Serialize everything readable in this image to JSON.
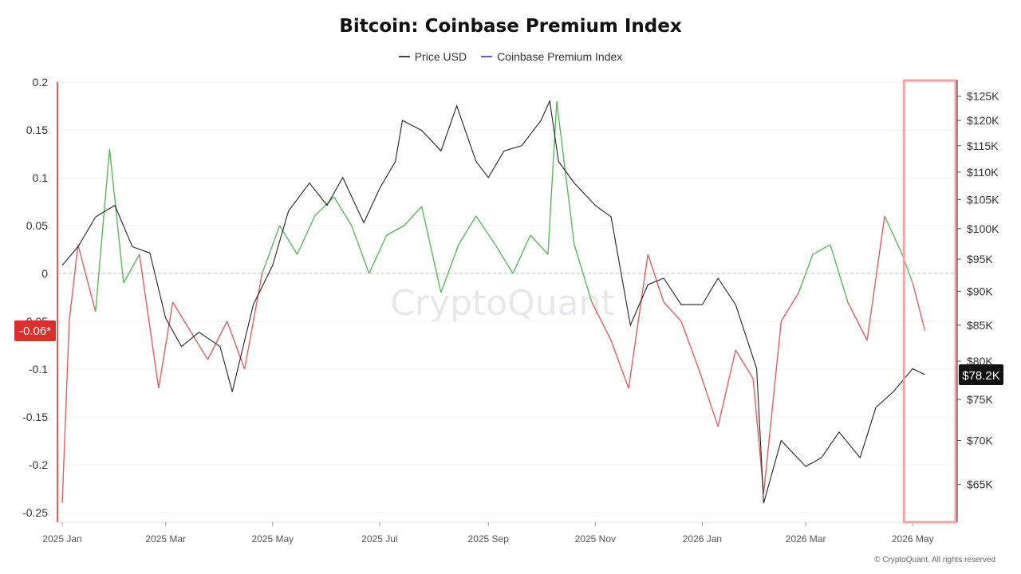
{
  "title": "Bitcoin: Coinbase Premium Index",
  "legend": [
    {
      "label": "Price USD",
      "color": "#444444"
    },
    {
      "label": "Coinbase Premium Index",
      "color": "#6a5acd"
    }
  ],
  "watermark": "CryptoQuant",
  "copyright": "© CryptoQuant. All rights reserved",
  "left_badge": "-0.06*",
  "right_badge": "$78.2K",
  "colors": {
    "positive": "#5cb85c",
    "negative": "#e06060",
    "price": "#222222",
    "highlight": "#f3a3a3",
    "badge_left": "#d9302c",
    "badge_right": "#111111"
  },
  "chart_data": {
    "type": "line",
    "title": "Bitcoin: Coinbase Premium Index",
    "x_tick_labels": [
      "2025 Jan",
      "2025 Mar",
      "2025 May",
      "2025 Jul",
      "2025 Sep",
      "2025 Nov",
      "2026 Jan",
      "2026 Mar",
      "2026 May"
    ],
    "left_axis": {
      "ticks": [
        "0.2",
        "0.15",
        "0.1",
        "0.05",
        "0",
        "-0.05",
        "-0.1",
        "-0.15",
        "-0.2",
        "-0.25"
      ],
      "range": [
        -0.26,
        0.2
      ]
    },
    "right_axis": {
      "scale": "log",
      "ticks": [
        "$125K",
        "$120K",
        "$115K",
        "$110K",
        "$105K",
        "$100K",
        "$95K",
        "$90K",
        "$85K",
        "$80K",
        "$75K",
        "$70K",
        "$65K"
      ],
      "range": [
        61000,
        128000
      ]
    },
    "series": [
      {
        "name": "Price USD",
        "axis": "right",
        "x": [
          "2025-01-01",
          "2025-01-10",
          "2025-01-20",
          "2025-01-31",
          "2025-02-10",
          "2025-02-20",
          "2025-03-01",
          "2025-03-10",
          "2025-03-20",
          "2025-04-01",
          "2025-04-08",
          "2025-04-20",
          "2025-05-01",
          "2025-05-10",
          "2025-05-22",
          "2025-06-01",
          "2025-06-10",
          "2025-06-22",
          "2025-07-01",
          "2025-07-10",
          "2025-07-14",
          "2025-07-25",
          "2025-08-05",
          "2025-08-14",
          "2025-08-25",
          "2025-09-01",
          "2025-09-10",
          "2025-09-20",
          "2025-10-01",
          "2025-10-06",
          "2025-10-11",
          "2025-10-20",
          "2025-11-01",
          "2025-11-10",
          "2025-11-21",
          "2025-12-01",
          "2025-12-10",
          "2025-12-20",
          "2026-01-01",
          "2026-01-10",
          "2026-01-20",
          "2026-02-01",
          "2026-02-05",
          "2026-02-15",
          "2026-03-01",
          "2026-03-10",
          "2026-03-20",
          "2026-04-01",
          "2026-04-10",
          "2026-04-20",
          "2026-05-01",
          "2026-05-08"
        ],
        "values": [
          94000,
          97000,
          102000,
          104000,
          97000,
          96000,
          86000,
          82000,
          84000,
          82000,
          76000,
          88000,
          94000,
          103000,
          108000,
          104000,
          109000,
          101000,
          107000,
          112000,
          120000,
          118000,
          114000,
          123000,
          112000,
          109000,
          114000,
          115000,
          120000,
          124000,
          112000,
          108000,
          104000,
          102000,
          85000,
          91000,
          92000,
          88000,
          88000,
          92000,
          88000,
          79000,
          63000,
          70000,
          67000,
          68000,
          71000,
          68000,
          74000,
          76000,
          79000,
          78200
        ]
      },
      {
        "name": "Coinbase Premium Index",
        "axis": "left",
        "x": [
          "2025-01-01",
          "2025-01-05",
          "2025-01-10",
          "2025-01-20",
          "2025-01-28",
          "2025-02-05",
          "2025-02-14",
          "2025-02-25",
          "2025-03-05",
          "2025-03-15",
          "2025-03-25",
          "2025-04-05",
          "2025-04-15",
          "2025-04-25",
          "2025-05-05",
          "2025-05-15",
          "2025-05-25",
          "2025-06-05",
          "2025-06-15",
          "2025-06-25",
          "2025-07-05",
          "2025-07-15",
          "2025-07-25",
          "2025-08-05",
          "2025-08-15",
          "2025-08-25",
          "2025-09-05",
          "2025-09-15",
          "2025-09-25",
          "2025-10-05",
          "2025-10-10",
          "2025-10-20",
          "2025-10-30",
          "2025-11-10",
          "2025-11-20",
          "2025-12-01",
          "2025-12-10",
          "2025-12-20",
          "2025-12-30",
          "2026-01-10",
          "2026-01-20",
          "2026-01-30",
          "2026-02-05",
          "2026-02-15",
          "2026-02-25",
          "2026-03-05",
          "2026-03-15",
          "2026-03-25",
          "2026-04-05",
          "2026-04-15",
          "2026-04-25",
          "2026-05-01",
          "2026-05-08"
        ],
        "values": [
          -0.24,
          -0.05,
          0.03,
          -0.04,
          0.13,
          -0.01,
          0.02,
          -0.12,
          -0.03,
          -0.06,
          -0.09,
          -0.05,
          -0.1,
          0.0,
          0.05,
          0.02,
          0.06,
          0.08,
          0.05,
          0.0,
          0.04,
          0.05,
          0.07,
          -0.02,
          0.03,
          0.06,
          0.03,
          0.0,
          0.04,
          0.02,
          0.18,
          0.03,
          -0.03,
          -0.07,
          -0.12,
          0.02,
          -0.03,
          -0.05,
          -0.1,
          -0.16,
          -0.08,
          -0.11,
          -0.23,
          -0.05,
          -0.02,
          0.02,
          0.03,
          -0.03,
          -0.07,
          0.06,
          0.02,
          -0.01,
          -0.06
        ]
      }
    ]
  }
}
